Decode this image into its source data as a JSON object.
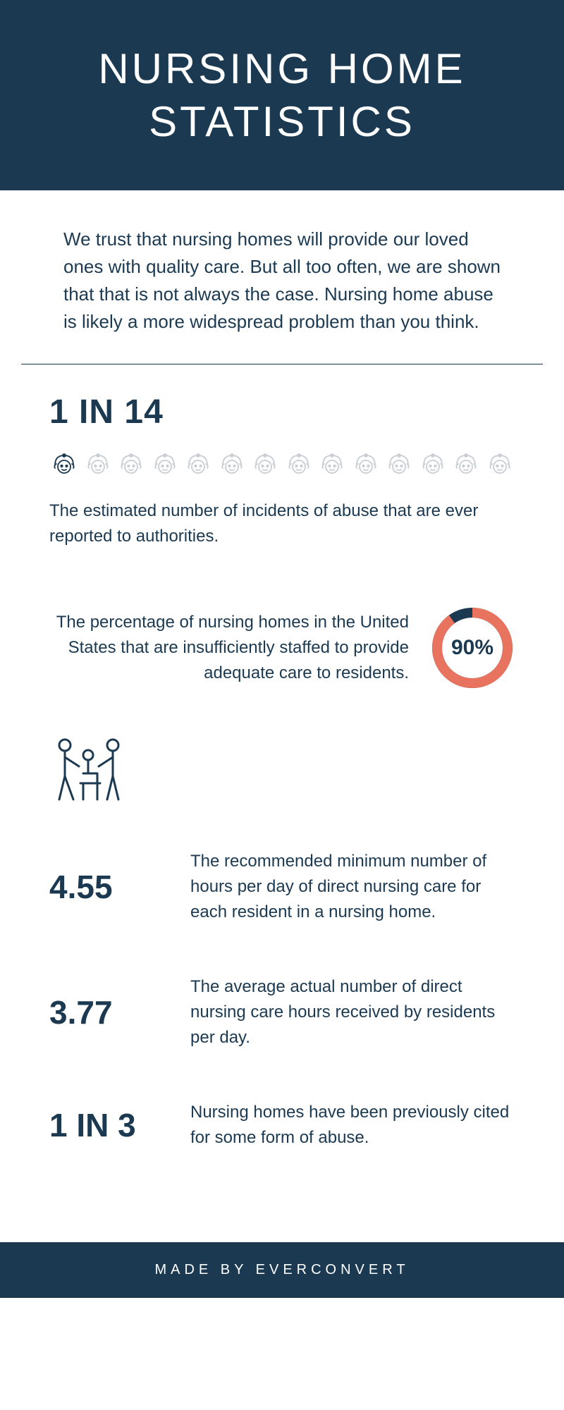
{
  "header": {
    "title": "NURSING HOME STATISTICS"
  },
  "intro": {
    "text": "We trust that nursing homes will provide our loved ones with quality care. But all too often, we are shown that that is not always the case. Nursing home abuse is likely a more widespread problem than you think."
  },
  "stat1": {
    "heading": "1 IN 14",
    "description": "The estimated number of incidents of abuse that are ever reported to authorities.",
    "icon_count": 14,
    "highlighted_index": 0,
    "icon_color_highlighted": "#1b3a52",
    "icon_color_default": "#c8ced4"
  },
  "stat2": {
    "description": "The percentage of nursing homes in the United States that are insufficiently staffed to provide adequate care to residents.",
    "value": "90%",
    "percent": 90,
    "ring_color": "#e8735f",
    "ring_bg_color": "#1b3a52",
    "ring_stroke_width": 14
  },
  "care_icon": {
    "color": "#1b3a52"
  },
  "stat3": {
    "number": "4.55",
    "description": "The recommended minimum number of hours per day of direct nursing care for each resident in a nursing home."
  },
  "stat4": {
    "number": "3.77",
    "description": "The average actual number of direct nursing care hours received by residents per day."
  },
  "stat5": {
    "number": "1 IN 3",
    "description": "Nursing homes have been previously cited for some form of abuse."
  },
  "footer": {
    "text": "MADE BY EVERCONVERT"
  },
  "colors": {
    "primary": "#1b3a52",
    "accent": "#e8735f",
    "icon_muted": "#c8ced4",
    "background": "#ffffff"
  }
}
